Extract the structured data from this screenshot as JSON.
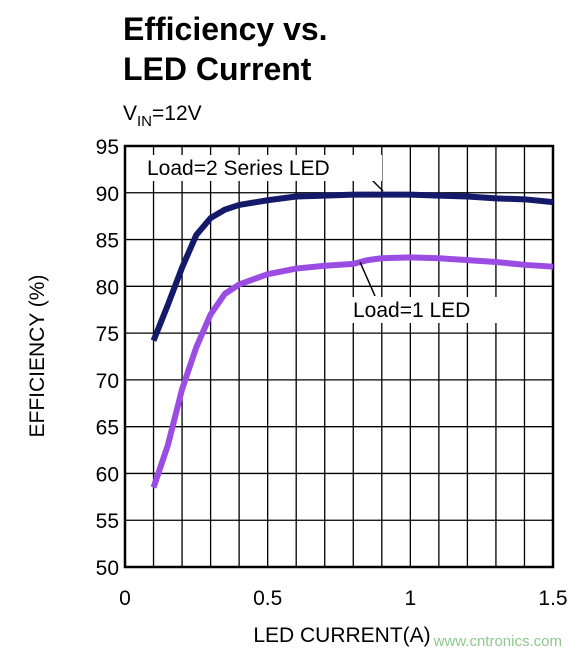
{
  "chart_data": {
    "type": "line",
    "title_lines": [
      "Efficiency vs.",
      "LED Current"
    ],
    "subtitle_parts": [
      "V",
      "IN",
      "=12V"
    ],
    "x_label": "LED CURRENT(A)",
    "y_label": "EFFICIENCY (%)",
    "watermark": "www.cntronics.com",
    "xlim": [
      0,
      1.5
    ],
    "xticks": [
      0,
      0.5,
      {
        "value": 1,
        "label": "1"
      },
      1.5
    ],
    "ylim": [
      50,
      95
    ],
    "yticks": [
      50,
      55,
      60,
      65,
      70,
      75,
      80,
      85,
      90,
      95
    ],
    "grid": true,
    "series": [
      {
        "name": "Load=2 Series LED",
        "color": "#15196a",
        "x": [
          0.1,
          0.15,
          0.2,
          0.25,
          0.3,
          0.35,
          0.4,
          0.5,
          0.6,
          0.7,
          0.8,
          0.9,
          1.0,
          1.1,
          1.2,
          1.3,
          1.4,
          1.5
        ],
        "values": [
          74.2,
          78,
          82,
          85.5,
          87.3,
          88.2,
          88.7,
          89.2,
          89.6,
          89.7,
          89.8,
          89.8,
          89.8,
          89.7,
          89.6,
          89.4,
          89.3,
          89.0
        ]
      },
      {
        "name": "Load=1 LED",
        "color": "#9b4de3",
        "x": [
          0.1,
          0.15,
          0.2,
          0.25,
          0.3,
          0.35,
          0.4,
          0.5,
          0.6,
          0.7,
          0.8,
          0.85,
          0.9,
          1.0,
          1.1,
          1.2,
          1.3,
          1.4,
          1.5
        ],
        "values": [
          58.5,
          63,
          69,
          73.5,
          77,
          79.2,
          80.2,
          81.3,
          81.9,
          82.2,
          82.4,
          82.8,
          83.0,
          83.1,
          83.0,
          82.8,
          82.6,
          82.3,
          82.1
        ]
      }
    ]
  }
}
